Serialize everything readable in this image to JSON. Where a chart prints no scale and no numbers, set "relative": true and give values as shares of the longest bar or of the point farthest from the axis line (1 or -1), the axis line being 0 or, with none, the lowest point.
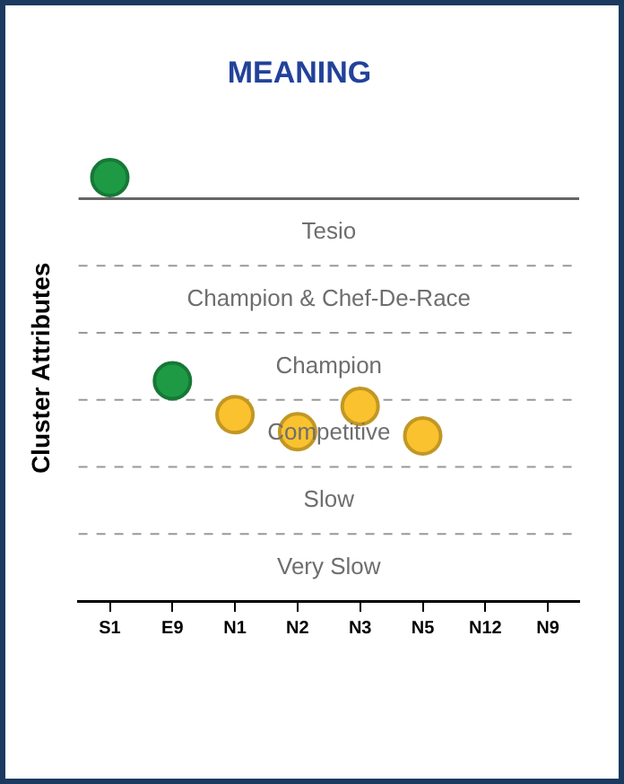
{
  "chart_data": {
    "type": "scatter",
    "title": "MEANING",
    "ylabel": "Cluster Attributes",
    "categories": [
      "S1",
      "E9",
      "N1",
      "N2",
      "N3",
      "N5",
      "N12",
      "N9"
    ],
    "values": [
      1,
      0.52,
      0.44,
      0.4,
      0.46,
      0.39,
      null,
      null
    ],
    "colors": [
      "#1e9a45",
      "#1e9a45",
      "#f9c22e",
      "#f9c22e",
      "#f9c22e",
      "#f9c22e",
      "#f9c22e",
      "#f9c22e"
    ],
    "relative": true,
    "ref_lines": [
      {
        "axis": "y",
        "value": 0.95,
        "color": "#666666"
      }
    ],
    "annotations": [
      "Tesio",
      "Champion & Chef-De-Race",
      "Champion",
      "Competitive",
      "Slow",
      "Very Slow"
    ],
    "grid": false,
    "legend": false,
    "marker": "circle"
  }
}
